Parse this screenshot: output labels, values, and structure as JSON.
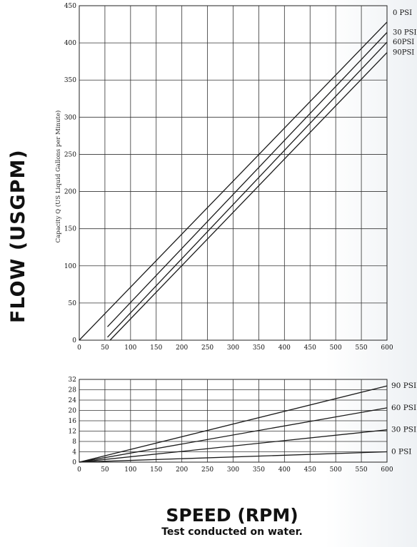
{
  "figure": {
    "y_title": "FLOW (USGPM)",
    "x_title": "SPEED (RPM)",
    "footnote": "Test conducted on water."
  },
  "chart_data": [
    {
      "type": "line",
      "xlabel": "",
      "ylabel": "Capacity Q (US Liquid Gallons per Minute)",
      "xlim": [
        0,
        600
      ],
      "ylim": [
        0,
        450
      ],
      "xticks": [
        0,
        50,
        100,
        150,
        200,
        250,
        300,
        350,
        400,
        450,
        500,
        550,
        600
      ],
      "yticks": [
        0,
        50,
        100,
        150,
        200,
        250,
        300,
        350,
        400,
        450
      ],
      "grid": true,
      "series": [
        {
          "name": "0 PSI",
          "x": [
            0,
            600
          ],
          "y": [
            0,
            428
          ]
        },
        {
          "name": "30 PSI",
          "x": [
            55,
            600
          ],
          "y": [
            18,
            414
          ]
        },
        {
          "name": "60PSI",
          "x": [
            55,
            600
          ],
          "y": [
            4,
            401
          ]
        },
        {
          "name": "90PSI",
          "x": [
            60,
            600
          ],
          "y": [
            0,
            387
          ]
        }
      ]
    },
    {
      "type": "line",
      "xlabel": "",
      "ylabel": "",
      "xlim": [
        0,
        600
      ],
      "ylim": [
        0,
        32
      ],
      "xticks": [
        0,
        50,
        100,
        150,
        200,
        250,
        300,
        350,
        400,
        450,
        500,
        550,
        600
      ],
      "yticks": [
        0,
        4,
        8,
        12,
        16,
        20,
        24,
        28,
        32
      ],
      "grid": true,
      "series": [
        {
          "name": "90 PSI",
          "x": [
            0,
            600
          ],
          "y": [
            0,
            29.5
          ]
        },
        {
          "name": "60 PSI",
          "x": [
            0,
            600
          ],
          "y": [
            0,
            21
          ]
        },
        {
          "name": "30 PSI",
          "x": [
            0,
            600
          ],
          "y": [
            0,
            12.5
          ]
        },
        {
          "name": "0 PSI",
          "x": [
            0,
            600
          ],
          "y": [
            0,
            4
          ]
        }
      ]
    }
  ]
}
